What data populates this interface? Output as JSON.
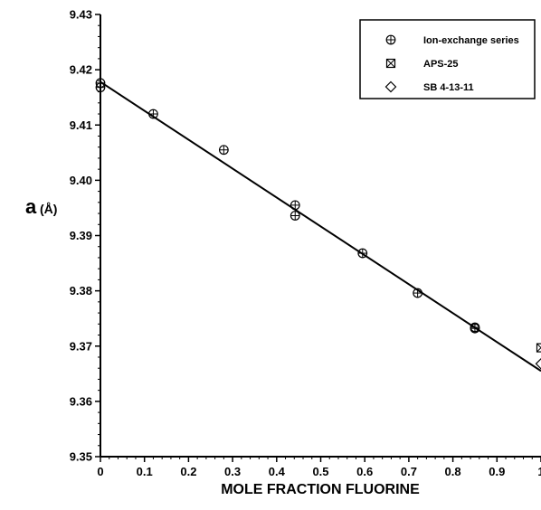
{
  "chart_data": {
    "type": "scatter",
    "title": "",
    "xlabel": "MOLE FRACTION FLUORINE",
    "ylabel_main": "a",
    "ylabel_unit": "(Å)",
    "xlim": [
      0,
      1
    ],
    "ylim": [
      9.35,
      9.43
    ],
    "x_ticks": [
      0,
      0.1,
      0.2,
      0.3,
      0.4,
      0.5,
      0.6,
      0.7,
      0.8,
      0.9,
      1
    ],
    "x_tick_labels": [
      "0",
      "0.1",
      "0.2",
      "0.3",
      "0.4",
      "0.5",
      "0.6",
      "0.7",
      "0.8",
      "0.9",
      "1"
    ],
    "y_ticks": [
      9.35,
      9.36,
      9.37,
      9.38,
      9.39,
      9.4,
      9.41,
      9.42,
      9.43
    ],
    "y_tick_labels": [
      "9.35",
      "9.36",
      "9.37",
      "9.38",
      "9.39",
      "9.40",
      "9.41",
      "9.42",
      "9.43"
    ],
    "grid": false,
    "legend_position": "top-right",
    "series": [
      {
        "name": "Ion-exchange series",
        "marker": "circle-plus",
        "points": [
          [
            0,
            9.4168
          ],
          [
            0,
            9.4176
          ],
          [
            0.12,
            9.412
          ],
          [
            0.28,
            9.4055
          ],
          [
            0.442,
            9.3955
          ],
          [
            0.442,
            9.3936
          ],
          [
            0.595,
            9.3868
          ],
          [
            0.72,
            9.3796
          ],
          [
            0.85,
            9.3734
          ],
          [
            0.85,
            9.3732
          ]
        ]
      },
      {
        "name": "APS-25",
        "marker": "box-x",
        "points": [
          [
            1.0,
            9.3697
          ]
        ]
      },
      {
        "name": "SB 4-13-11",
        "marker": "diamond",
        "points": [
          [
            1.0,
            9.3668
          ]
        ]
      }
    ],
    "fit_line": {
      "x": [
        0,
        1
      ],
      "y": [
        9.4178,
        9.3655
      ]
    }
  }
}
